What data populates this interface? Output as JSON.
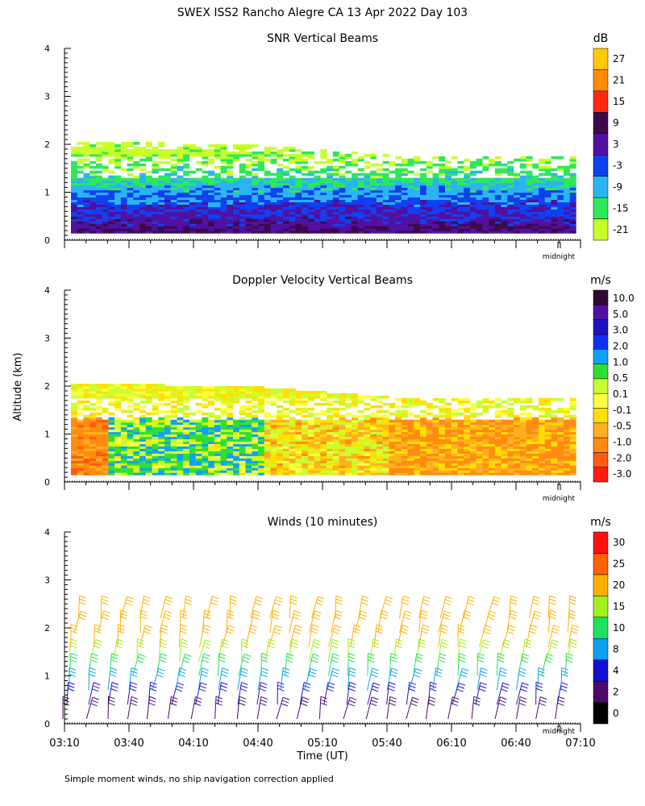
{
  "title": "SWEX ISS2 Rancho Alegre CA  13 Apr 2022 Day 103",
  "footnote": "Simple moment winds, no ship navigation correction applied",
  "midnight_label": "midnight",
  "colors": {
    "snr": [
      "#c8ff2a",
      "#2ee85a",
      "#2ab4f2",
      "#1040f0",
      "#5010a0",
      "#3c0a4c",
      "#ff2a10",
      "#ff8c00",
      "#ffc800"
    ],
    "doppler": [
      "#ff1a10",
      "#ff5a10",
      "#ff8c10",
      "#ffb020",
      "#ffe000",
      "#ffff40",
      "#c8ff30",
      "#30e030",
      "#10a0ff",
      "#1030f0",
      "#2010c0",
      "#5010a0",
      "#300a30"
    ],
    "wind": [
      "#000000",
      "#4a0a6a",
      "#1010d0",
      "#10a0f0",
      "#20e060",
      "#a0f020",
      "#ffb000",
      "#ff6000",
      "#ff1010"
    ],
    "barb_bands": [
      "#4a0a6a",
      "#2a10c0",
      "#10a0f0",
      "#20e060",
      "#a0f020",
      "#ffb000"
    ]
  },
  "chart_data": [
    {
      "type": "heatmap",
      "title": "SNR Vertical Beams",
      "xlabel": "",
      "ylabel": "",
      "ylim": [
        0,
        4
      ],
      "yticks": [
        "0",
        "1",
        "2",
        "3",
        "4"
      ],
      "colorbar": {
        "unit": "dB",
        "labels": [
          "-21",
          "-15",
          "-9",
          "-3",
          "3",
          "9",
          "15",
          "21",
          "27"
        ],
        "bins": [
          -21,
          -15,
          -9,
          -3,
          3,
          9,
          15,
          21,
          27,
          33
        ]
      },
      "profile": [
        {
          "altitude_km": 0.2,
          "snr_db": 9
        },
        {
          "altitude_km": 0.4,
          "snr_db": 5
        },
        {
          "altitude_km": 0.7,
          "snr_db": 1
        },
        {
          "altitude_km": 1.0,
          "snr_db": -5
        },
        {
          "altitude_km": 1.3,
          "snr_db": -11
        },
        {
          "altitude_km": 1.6,
          "snr_db": -15
        },
        {
          "altitude_km": 1.9,
          "snr_db": -19
        }
      ],
      "echo_top_km": {
        "x": [
          "03:10",
          "04:40",
          "05:40",
          "07:10"
        ],
        "y": [
          2.05,
          1.95,
          1.75,
          1.72
        ]
      }
    },
    {
      "type": "heatmap",
      "title": "Doppler Velocity Vertical Beams",
      "xlabel": "",
      "ylabel": "Altitude (km)",
      "ylim": [
        0,
        4
      ],
      "yticks": [
        "0",
        "1",
        "2",
        "3",
        "4"
      ],
      "colorbar": {
        "unit": "m/s",
        "labels": [
          "-3.0",
          "-2.0",
          "-1.0",
          "-0.5",
          "-0.1",
          "0.1",
          "0.5",
          "1.0",
          "2.0",
          "3.0",
          "5.0",
          "10.0"
        ]
      },
      "segments": [
        {
          "from": "03:10",
          "to": "03:30",
          "velocity_m_s": -1.5
        },
        {
          "from": "03:30",
          "to": "04:40",
          "velocity_m_s": 0.6
        },
        {
          "from": "04:40",
          "to": "05:40",
          "velocity_m_s": -0.3
        },
        {
          "from": "05:40",
          "to": "07:10",
          "velocity_m_s": -1.0
        }
      ],
      "echo_top_km": {
        "x": [
          "03:10",
          "04:40",
          "05:40",
          "07:10"
        ],
        "y": [
          2.05,
          1.95,
          1.75,
          1.72
        ]
      }
    },
    {
      "type": "scatter",
      "title": "Winds (10 minutes)",
      "xlabel": "Time (UT)",
      "ylabel": "",
      "ylim": [
        0,
        4
      ],
      "yticks": [
        "0",
        "1",
        "2",
        "3",
        "4"
      ],
      "xticks": [
        "03:10",
        "03:40",
        "04:10",
        "04:40",
        "05:10",
        "05:40",
        "06:10",
        "06:40",
        "07:10"
      ],
      "colorbar": {
        "unit": "m/s",
        "labels": [
          "0",
          "2",
          "4",
          "8",
          "10",
          "15",
          "20",
          "25",
          "30"
        ]
      },
      "profile_times": [
        "03:13",
        "03:23",
        "03:33",
        "03:43",
        "03:53",
        "04:03",
        "04:13",
        "04:23",
        "04:33",
        "04:43",
        "04:53",
        "05:03",
        "05:13",
        "05:23",
        "05:33",
        "05:43",
        "05:53",
        "06:03",
        "06:13",
        "06:23",
        "06:33",
        "06:43",
        "06:53",
        "07:03"
      ],
      "profile_altitudes_km": [
        0.1,
        0.4,
        0.7,
        1.0,
        1.3,
        1.6,
        1.9,
        2.2
      ]
    }
  ]
}
